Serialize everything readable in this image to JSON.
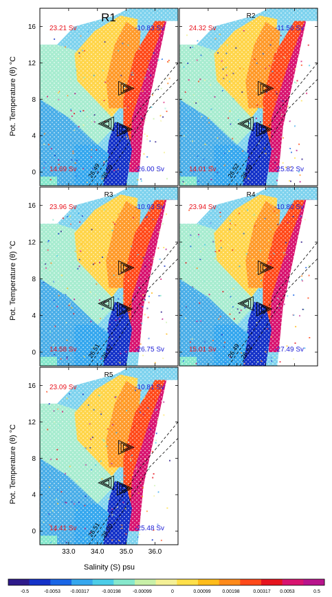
{
  "figure": {
    "xlabel": "Salinity (S) psu",
    "ylabel": "Pot. Temperature (θ) °C",
    "xticks": [
      "33.0",
      "34.0",
      "35.0",
      "36.0"
    ],
    "yticks": [
      "0",
      "4",
      "8",
      "12",
      "16"
    ],
    "colorbar_labels": [
      "-0.5",
      "-0.0053",
      "-0.00317",
      "-0.00198",
      "-0.00099",
      "0",
      "0.00099",
      "0.00198",
      "0.00317",
      "0.0053",
      "0.5"
    ],
    "colors": {
      "pos_text": "#e8111b",
      "neg_text": "#1a1ad6",
      "scale": [
        "#2e1a8a",
        "#1432c8",
        "#1a66e6",
        "#35a7ee",
        "#4ccde8",
        "#86e8cc",
        "#c8f0a8",
        "#f4f096",
        "#ffe04a",
        "#ffbc1a",
        "#ff8a1a",
        "#ff4a1a",
        "#e6141e",
        "#d81470",
        "#b8148c"
      ]
    }
  },
  "chart_data": [
    {
      "type": "heatmap",
      "panel": "R1",
      "title": "R1",
      "transports": {
        "top_left": "23.21 Sv",
        "top_right": "-10.83 Sv",
        "bottom_left": "14.69 Sv",
        "bottom_right": "-26.00 Sv"
      },
      "contours": [
        "26.49",
        "26.59"
      ],
      "xlim": [
        32.0,
        36.8
      ],
      "ylim": [
        -1.5,
        18.0
      ]
    },
    {
      "type": "heatmap",
      "panel": "R2",
      "title": "R2",
      "transports": {
        "top_left": "24.32 Sv",
        "top_right": "-11.56 Sv",
        "bottom_left": "14.01 Sv",
        "bottom_right": "-25.82 Sv"
      },
      "contours": [
        "26.52",
        "26.59"
      ],
      "xlim": [
        32.0,
        36.8
      ],
      "ylim": [
        -1.5,
        18.0
      ]
    },
    {
      "type": "heatmap",
      "panel": "R3",
      "title": "R3",
      "transports": {
        "top_left": "23.96 Sv",
        "top_right": "-10.93 Sv",
        "bottom_left": "14.58 Sv",
        "bottom_right": "-26.75 Sv"
      },
      "contours": [
        "26.51",
        "26.67"
      ],
      "xlim": [
        32.0,
        36.8
      ],
      "ylim": [
        -1.5,
        18.0
      ]
    },
    {
      "type": "heatmap",
      "panel": "R4",
      "title": "R4",
      "transports": {
        "top_left": "23.94 Sv",
        "top_right": "-10.80 Sv",
        "bottom_left": "15.01 Sv",
        "bottom_right": "-27.49 Sv"
      },
      "contours": [
        "26.49",
        "26.62"
      ],
      "xlim": [
        32.0,
        36.8
      ],
      "ylim": [
        -1.5,
        18.0
      ]
    },
    {
      "type": "heatmap",
      "panel": "R5",
      "title": "R5",
      "transports": {
        "top_left": "23.09 Sv",
        "top_right": "-10.81 Sv",
        "bottom_left": "14.41 Sv",
        "bottom_right": "-25.48 Sv"
      },
      "contours": [
        "26.51",
        "26.60"
      ],
      "xlim": [
        32.0,
        36.8
      ],
      "ylim": [
        -1.5,
        18.0
      ]
    }
  ]
}
